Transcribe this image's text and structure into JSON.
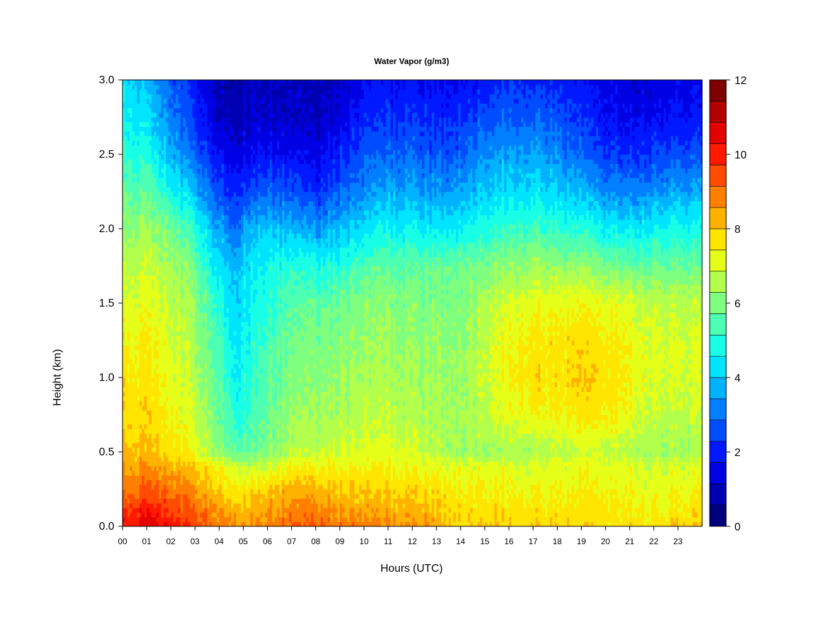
{
  "chart_data": {
    "type": "heatmap",
    "title": "Water Vapor (g/m3)",
    "xlabel": "Hours (UTC)",
    "ylabel": "Height (km)",
    "x_tick_labels": [
      "00",
      "01",
      "02",
      "03",
      "04",
      "05",
      "06",
      "07",
      "08",
      "09",
      "10",
      "11",
      "12",
      "13",
      "14",
      "15",
      "16",
      "17",
      "18",
      "19",
      "20",
      "21",
      "22",
      "23"
    ],
    "y_tick_labels": [
      "0.0",
      "0.5",
      "1.0",
      "1.5",
      "2.0",
      "2.5",
      "3.0"
    ],
    "xlim": [
      0,
      24
    ],
    "ylim": [
      0,
      3.0
    ],
    "colorbar": {
      "min": 0,
      "max": 12,
      "tick_labels": [
        "0",
        "2",
        "4",
        "6",
        "8",
        "10",
        "12"
      ],
      "colors": [
        "#00007f",
        "#0000b2",
        "#0000e5",
        "#0019ff",
        "#004cff",
        "#007fff",
        "#00b2ff",
        "#00e5ff",
        "#19ffe5",
        "#4cffb2",
        "#7fff7f",
        "#b2ff4c",
        "#e5ff19",
        "#ffe500",
        "#ffb200",
        "#ff7f00",
        "#ff4c00",
        "#ff1900",
        "#e50000",
        "#b20000",
        "#7f0000"
      ]
    },
    "x_hours": [
      0,
      1,
      2,
      3,
      4,
      4.7,
      5,
      6,
      7,
      8,
      9,
      10,
      11,
      12,
      13,
      14,
      15,
      16,
      17,
      18,
      19,
      20,
      21,
      22,
      23,
      24
    ],
    "heights_km": [
      0.0,
      0.1,
      0.2,
      0.3,
      0.4,
      0.5,
      0.75,
      1.0,
      1.25,
      1.5,
      1.75,
      2.0,
      2.25,
      2.5,
      2.75,
      3.0
    ],
    "values_g_m3": [
      [
        10.3,
        9.8,
        9.2,
        8.8,
        8.6,
        8.2,
        8.0,
        7.8,
        7.5,
        7.2,
        6.8,
        6.4,
        5.8,
        5.2,
        4.8,
        4.5
      ],
      [
        10.6,
        10.1,
        9.5,
        9.0,
        8.6,
        8.0,
        7.8,
        7.6,
        7.4,
        7.1,
        6.8,
        6.3,
        5.6,
        4.8,
        4.2,
        3.8
      ],
      [
        10.2,
        9.7,
        9.2,
        8.8,
        8.4,
        7.8,
        7.4,
        7.2,
        7.0,
        6.8,
        6.5,
        5.9,
        4.8,
        3.8,
        3.2,
        2.8
      ],
      [
        9.5,
        9.2,
        8.8,
        8.4,
        8.0,
        7.2,
        6.8,
        6.6,
        6.4,
        6.2,
        5.8,
        5.0,
        3.8,
        2.8,
        2.2,
        1.8
      ],
      [
        9.0,
        8.6,
        8.2,
        7.8,
        7.4,
        6.2,
        5.8,
        5.6,
        5.4,
        5.0,
        4.4,
        3.6,
        2.6,
        1.8,
        1.2,
        1.0
      ],
      [
        8.8,
        8.4,
        8.0,
        7.4,
        7.0,
        5.8,
        5.0,
        4.6,
        4.4,
        4.2,
        3.8,
        3.0,
        2.2,
        1.5,
        1.0,
        0.6
      ],
      [
        8.6,
        8.2,
        7.8,
        7.2,
        6.8,
        5.6,
        5.0,
        4.8,
        4.6,
        4.4,
        4.2,
        3.6,
        2.4,
        1.6,
        1.1,
        0.9
      ],
      [
        8.8,
        8.5,
        8.2,
        7.6,
        7.0,
        6.0,
        5.8,
        5.6,
        5.4,
        5.0,
        4.8,
        4.0,
        2.8,
        1.8,
        1.2,
        1.0
      ],
      [
        9.2,
        8.8,
        8.4,
        8.0,
        7.4,
        6.6,
        6.2,
        6.0,
        5.8,
        5.5,
        5.0,
        3.8,
        2.6,
        1.6,
        1.1,
        0.9
      ],
      [
        9.3,
        8.9,
        8.5,
        8.0,
        7.5,
        6.8,
        6.4,
        6.2,
        6.0,
        5.6,
        4.8,
        3.4,
        2.2,
        1.5,
        1.0,
        0.9
      ],
      [
        9.0,
        8.6,
        8.2,
        7.8,
        7.4,
        6.9,
        6.5,
        6.3,
        6.1,
        5.8,
        5.0,
        3.8,
        2.8,
        2.0,
        1.4,
        1.1
      ],
      [
        8.8,
        8.4,
        8.0,
        7.7,
        7.4,
        7.0,
        6.6,
        6.4,
        6.2,
        6.0,
        5.4,
        4.2,
        3.2,
        2.6,
        2.0,
        1.6
      ],
      [
        8.7,
        8.3,
        8.0,
        7.7,
        7.4,
        7.0,
        6.7,
        6.5,
        6.3,
        6.1,
        5.6,
        4.6,
        3.6,
        2.8,
        2.2,
        1.8
      ],
      [
        8.6,
        8.3,
        8.0,
        7.6,
        7.3,
        6.9,
        6.6,
        6.4,
        6.2,
        6.0,
        5.6,
        4.6,
        3.6,
        2.8,
        2.2,
        1.8
      ],
      [
        8.4,
        8.1,
        7.8,
        7.5,
        7.2,
        6.6,
        6.5,
        6.3,
        6.2,
        6.0,
        5.6,
        4.4,
        3.4,
        2.6,
        2.0,
        1.6
      ],
      [
        8.0,
        7.8,
        7.6,
        7.4,
        7.2,
        6.4,
        6.4,
        6.3,
        6.2,
        6.0,
        5.8,
        4.6,
        3.6,
        2.8,
        2.2,
        1.8
      ],
      [
        8.0,
        7.8,
        7.6,
        7.4,
        7.2,
        6.4,
        6.8,
        6.8,
        6.8,
        6.6,
        6.0,
        5.0,
        4.0,
        3.4,
        2.6,
        2.0
      ],
      [
        7.9,
        7.7,
        7.5,
        7.3,
        7.1,
        6.4,
        7.2,
        7.4,
        7.4,
        7.0,
        6.2,
        5.2,
        4.2,
        3.6,
        2.8,
        2.2
      ],
      [
        7.9,
        7.7,
        7.5,
        7.3,
        7.0,
        6.5,
        7.4,
        7.8,
        7.6,
        7.2,
        6.4,
        5.4,
        4.4,
        3.6,
        2.8,
        2.2
      ],
      [
        7.8,
        7.6,
        7.4,
        7.2,
        7.0,
        6.6,
        7.4,
        7.6,
        7.6,
        7.2,
        6.2,
        5.0,
        4.0,
        3.2,
        2.6,
        2.0
      ],
      [
        7.9,
        7.7,
        7.5,
        7.3,
        7.2,
        6.8,
        7.6,
        8.0,
        7.8,
        7.3,
        6.2,
        5.0,
        3.8,
        2.8,
        2.2,
        1.8
      ],
      [
        7.8,
        7.6,
        7.5,
        7.3,
        7.2,
        6.8,
        7.6,
        7.8,
        7.6,
        7.2,
        6.0,
        4.6,
        3.4,
        2.4,
        1.8,
        1.5
      ],
      [
        7.8,
        7.6,
        7.4,
        7.2,
        7.1,
        6.6,
        7.2,
        7.4,
        7.4,
        7.0,
        5.8,
        4.4,
        3.2,
        2.2,
        1.6,
        1.3
      ],
      [
        7.7,
        7.5,
        7.3,
        7.1,
        7.0,
        6.4,
        6.8,
        7.0,
        7.0,
        6.8,
        5.8,
        4.6,
        3.4,
        2.4,
        1.7,
        1.4
      ],
      [
        8.0,
        7.6,
        7.4,
        7.2,
        7.0,
        6.4,
        6.8,
        7.0,
        7.0,
        6.8,
        5.8,
        4.8,
        3.6,
        2.6,
        1.8,
        1.5
      ],
      [
        8.2,
        7.8,
        7.5,
        7.3,
        7.1,
        6.5,
        6.8,
        7.0,
        7.0,
        6.8,
        5.8,
        4.8,
        3.6,
        2.6,
        1.8,
        1.5
      ]
    ]
  }
}
